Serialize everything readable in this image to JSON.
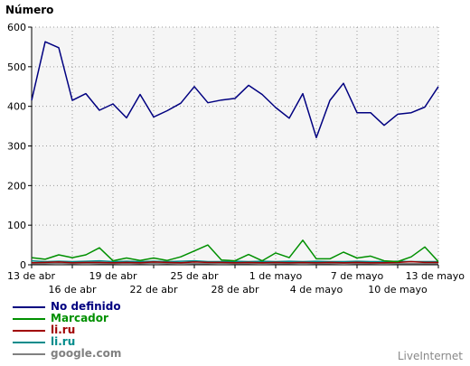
{
  "chart_data": {
    "type": "line",
    "ylabel": "Número",
    "ylim": [
      0,
      600
    ],
    "yticks": [
      0,
      100,
      200,
      300,
      400,
      500,
      600
    ],
    "grid": true,
    "legend_placement": "bottom-left",
    "x": [
      "13 de abr",
      "14 de abr",
      "15 de abr",
      "16 de abr",
      "17 de abr",
      "18 de abr",
      "19 de abr",
      "20 de abr",
      "21 de abr",
      "22 de abr",
      "23 de abr",
      "24 de abr",
      "25 de abr",
      "26 de abr",
      "27 de abr",
      "28 de abr",
      "29 de abr",
      "30 de abr",
      "1 de mayo",
      "2 de mayo",
      "3 de mayo",
      "4 de mayo",
      "5 de mayo",
      "6 de mayo",
      "7 de mayo",
      "8 de mayo",
      "9 de mayo",
      "10 de mayo",
      "11 de mayo",
      "12 de mayo",
      "13 de mayo"
    ],
    "tick_labels_upper": [
      "13 de abr",
      "19 de abr",
      "25 de abr",
      "1 de mayo",
      "7 de mayo",
      "13 de mayo"
    ],
    "tick_labels_lower": [
      "16 de abr",
      "22 de abr",
      "28 de abr",
      "4 de mayo",
      "10 de mayo"
    ],
    "series": [
      {
        "name": "No definido",
        "color": "#000080",
        "values": [
          415,
          563,
          548,
          415,
          432,
          390,
          406,
          371,
          430,
          373,
          389,
          408,
          450,
          409,
          416,
          420,
          453,
          430,
          397,
          370,
          432,
          321,
          415,
          458,
          384,
          384,
          352,
          380,
          384,
          398,
          450
        ]
      },
      {
        "name": "Marcador",
        "color": "#009000",
        "values": [
          18,
          14,
          25,
          18,
          25,
          43,
          10,
          17,
          11,
          17,
          11,
          20,
          35,
          50,
          12,
          10,
          26,
          10,
          30,
          18,
          62,
          15,
          15,
          32,
          17,
          22,
          10,
          8,
          20,
          45,
          8
        ]
      },
      {
        "name": "li.ru",
        "color": "#a00000",
        "values": [
          5,
          6,
          7,
          5,
          6,
          6,
          5,
          6,
          5,
          7,
          6,
          5,
          7,
          6,
          6,
          5,
          6,
          5,
          6,
          5,
          6,
          5,
          6,
          5,
          6,
          5,
          5,
          6,
          8,
          6,
          6
        ]
      },
      {
        "name": "li.ru",
        "color": "#008b8b",
        "values": [
          10,
          8,
          9,
          8,
          9,
          10,
          8,
          9,
          8,
          9,
          8,
          9,
          10,
          8,
          8,
          9,
          8,
          9,
          8,
          9,
          8,
          9,
          8,
          8,
          9,
          8,
          8,
          9,
          8,
          8,
          8
        ]
      },
      {
        "name": "google.com",
        "color": "#808080",
        "values": [
          3,
          3,
          4,
          3,
          4,
          3,
          3,
          4,
          3,
          4,
          3,
          4,
          3,
          3,
          4,
          3,
          3,
          4,
          3,
          3,
          4,
          3,
          3,
          4,
          3,
          3,
          4,
          3,
          3,
          3,
          3
        ]
      }
    ],
    "watermark": "LiveInternet"
  }
}
